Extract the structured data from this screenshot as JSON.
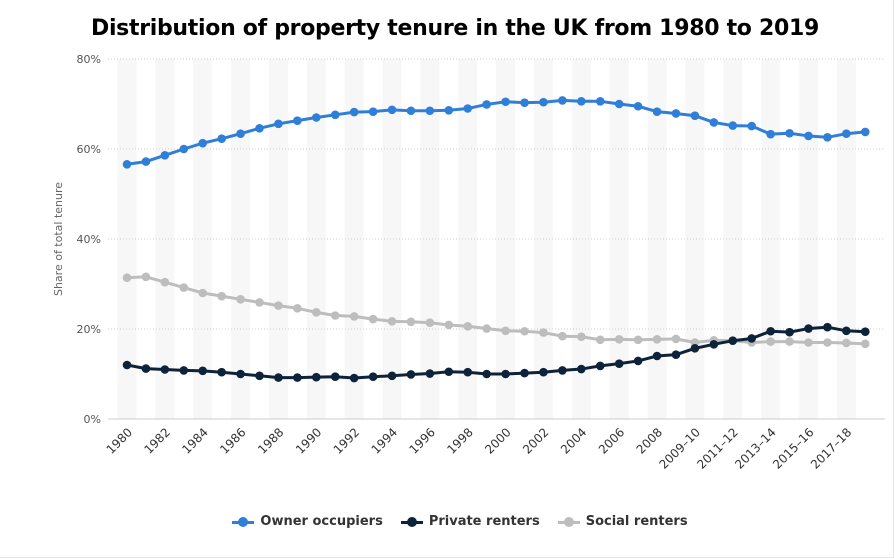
{
  "chart_data": {
    "type": "line",
    "title": "Distribution of property tenure in the UK from 1980 to 2019",
    "xlabel": "",
    "ylabel": "Share of total tenure",
    "ylim": [
      0,
      80
    ],
    "y_ticks": [
      "0%",
      "20%",
      "40%",
      "60%",
      "80%"
    ],
    "y_tick_values": [
      0,
      20,
      40,
      60,
      80
    ],
    "grid": true,
    "legend_position": "bottom-center",
    "categories": [
      "1980",
      "1981",
      "1982",
      "1983",
      "1984",
      "1985",
      "1986",
      "1987",
      "1988",
      "1989",
      "1990",
      "1991",
      "1992",
      "1993",
      "1994",
      "1995",
      "1996",
      "1997",
      "1998",
      "1999",
      "2000",
      "2001",
      "2002",
      "2003",
      "2004",
      "2005",
      "2006",
      "2007",
      "2008",
      "2008-09",
      "2009-10",
      "2010-11",
      "2011-12",
      "2012-13",
      "2013-14",
      "2014-15",
      "2015-16",
      "2016-17",
      "2017-18",
      "2018-19"
    ],
    "x_tick_labels": [
      "1980",
      "1982",
      "1984",
      "1986",
      "1988",
      "1990",
      "1992",
      "1994",
      "1996",
      "1998",
      "2000",
      "2002",
      "2004",
      "2006",
      "2008",
      "2009–10",
      "2011–12",
      "2013–14",
      "2015–16",
      "2017–18"
    ],
    "series": [
      {
        "name": "Owner occupiers",
        "color": "#2f7ed8",
        "values": [
          56.6,
          57.2,
          58.6,
          60.0,
          61.3,
          62.3,
          63.4,
          64.6,
          65.6,
          66.3,
          67.0,
          67.6,
          68.2,
          68.3,
          68.7,
          68.5,
          68.5,
          68.6,
          69.0,
          69.9,
          70.5,
          70.3,
          70.4,
          70.8,
          70.6,
          70.6,
          70.0,
          69.5,
          68.3,
          67.9,
          67.4,
          65.9,
          65.2,
          65.1,
          63.3,
          63.5,
          62.9,
          62.6,
          63.4,
          63.8
        ]
      },
      {
        "name": "Private renters",
        "color": "#0d233a",
        "values": [
          12.0,
          11.2,
          11.0,
          10.8,
          10.7,
          10.4,
          10.0,
          9.6,
          9.2,
          9.2,
          9.3,
          9.4,
          9.1,
          9.4,
          9.6,
          9.9,
          10.1,
          10.5,
          10.4,
          10.0,
          10.0,
          10.2,
          10.4,
          10.8,
          11.1,
          11.8,
          12.3,
          12.9,
          14.0,
          14.3,
          15.7,
          16.6,
          17.4,
          17.9,
          19.5,
          19.3,
          20.1,
          20.4,
          19.6,
          19.4
        ]
      },
      {
        "name": "Social renters",
        "color": "#bdbdbd",
        "values": [
          31.4,
          31.6,
          30.4,
          29.2,
          28.0,
          27.3,
          26.6,
          25.9,
          25.2,
          24.6,
          23.7,
          23.0,
          22.8,
          22.2,
          21.7,
          21.6,
          21.4,
          20.9,
          20.6,
          20.1,
          19.6,
          19.5,
          19.2,
          18.4,
          18.3,
          17.6,
          17.7,
          17.6,
          17.7,
          17.8,
          17.0,
          17.5,
          17.4,
          17.0,
          17.2,
          17.2,
          17.0,
          17.0,
          16.9,
          16.7
        ]
      }
    ]
  }
}
